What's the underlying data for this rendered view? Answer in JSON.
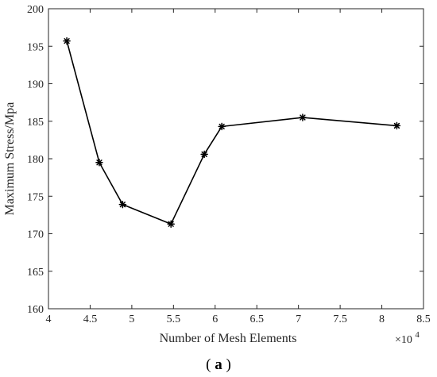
{
  "chart_data": {
    "type": "line",
    "xlabel": "Number of Mesh Elements",
    "ylabel": "Maximum Stress/Mpa",
    "x_exponent_label": {
      "base": "×10",
      "exponent": "4"
    },
    "xlim": [
      4,
      8.5
    ],
    "ylim": [
      160,
      200
    ],
    "xticks": [
      4,
      4.5,
      5,
      5.5,
      6,
      6.5,
      7,
      7.5,
      8,
      8.5
    ],
    "xtick_labels": [
      "4",
      "4.5",
      "5",
      "5.5",
      "6",
      "6.5",
      "7",
      "7.5",
      "8",
      "8.5"
    ],
    "yticks": [
      160,
      165,
      170,
      175,
      180,
      185,
      190,
      195,
      200
    ],
    "ytick_labels": [
      "160",
      "165",
      "170",
      "175",
      "180",
      "185",
      "190",
      "195",
      "200"
    ],
    "grid": false,
    "series": [
      {
        "color": "#000000",
        "marker": "asterisk",
        "x": [
          4.22,
          4.61,
          4.89,
          5.47,
          5.87,
          6.08,
          7.05,
          8.18
        ],
        "y": [
          195.7,
          179.5,
          173.9,
          171.3,
          180.6,
          184.3,
          185.5,
          184.4
        ]
      }
    ]
  },
  "caption": {
    "open": "(",
    "letter": "a",
    "close": ")"
  }
}
